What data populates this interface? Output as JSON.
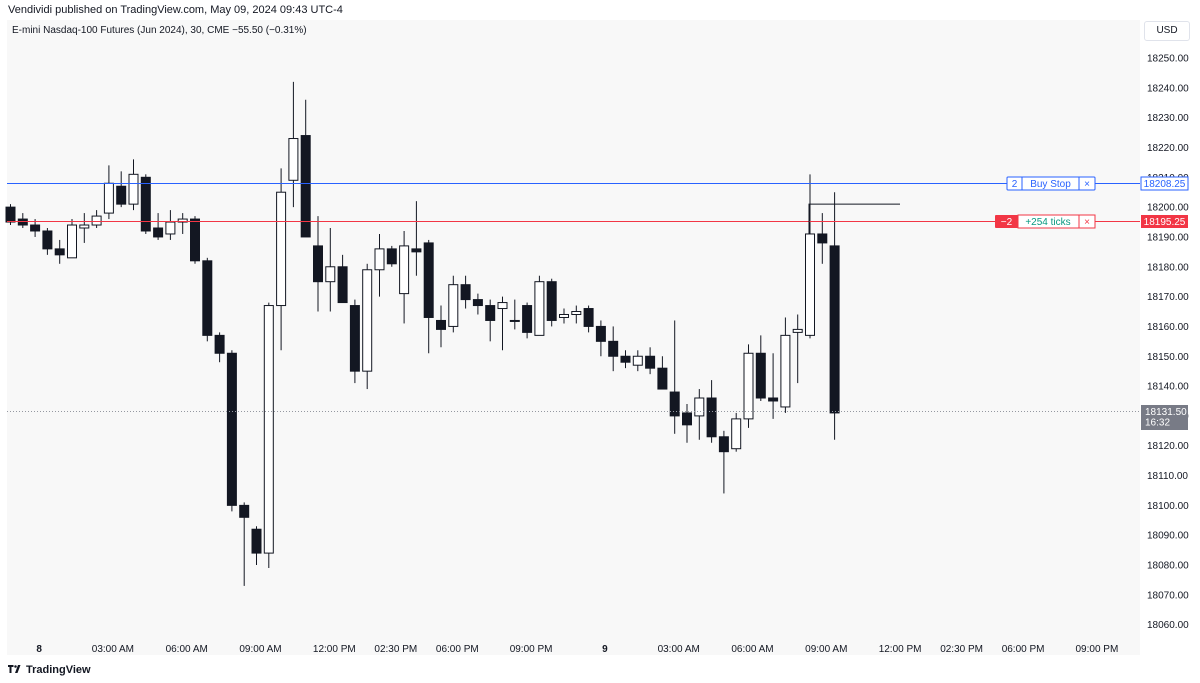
{
  "header": {
    "published": "Vendividi published on TradingView.com, May 09, 2024 09:43 UTC-4"
  },
  "symbol": {
    "line": "E-mini Nasdaq-100 Futures (Jun 2024), 30, CME  −55.50 (−0.31%)"
  },
  "price_axis": {
    "currency": "USD"
  },
  "footer": {
    "brand": "TradingView"
  },
  "orders": {
    "buy_stop": {
      "qty": "2",
      "label": "Buy Stop",
      "close": "×",
      "price_label": "18208.25",
      "price": 18208.25,
      "color": "#2962ff"
    },
    "position": {
      "qty": "−2",
      "label": "+254 ticks",
      "close": "×",
      "price_label": "18195.25",
      "price": 18195.25,
      "color": "#f23645",
      "pnl_color": "#089981"
    }
  },
  "last_price": {
    "price_label": "18131.50",
    "countdown": "16:32",
    "price": 18131.5
  },
  "chart_data": {
    "type": "candlestick",
    "title": "E-mini Nasdaq-100 Futures (Jun 2024), 30, CME",
    "ylim": [
      18055,
      18255
    ],
    "y_ticks": [
      18250,
      18240,
      18230,
      18220,
      18210,
      18200,
      18190,
      18180,
      18170,
      18160,
      18150,
      18140,
      18130,
      18120,
      18110,
      18100,
      18090,
      18080,
      18070,
      18060
    ],
    "y_tick_labels": [
      "18250.00",
      "18240.00",
      "18230.00",
      "18220.00",
      "18210.00",
      "18200.00",
      "18190.00",
      "18180.00",
      "18170.00",
      "18160.00",
      "18150.00",
      "18140.00",
      "18130.00",
      "18120.00",
      "18110.00",
      "18100.00",
      "18090.00",
      "18080.00",
      "18070.00",
      "18060.00"
    ],
    "x_tick_labels": [
      {
        "bar": 2,
        "label": "8",
        "bold": true
      },
      {
        "bar": 8,
        "label": "03:00 AM"
      },
      {
        "bar": 14,
        "label": "06:00 AM"
      },
      {
        "bar": 20,
        "label": "09:00 AM"
      },
      {
        "bar": 26,
        "label": "12:00 PM"
      },
      {
        "bar": 31,
        "label": "02:30 PM"
      },
      {
        "bar": 36,
        "label": "06:00 PM"
      },
      {
        "bar": 42,
        "label": "09:00 PM"
      },
      {
        "bar": 48,
        "label": "9",
        "bold": true
      },
      {
        "bar": 54,
        "label": "03:00 AM"
      },
      {
        "bar": 60,
        "label": "06:00 AM"
      },
      {
        "bar": 66,
        "label": "09:00 AM"
      },
      {
        "bar": 72,
        "label": "12:00 PM"
      },
      {
        "bar": 77,
        "label": "02:30 PM"
      },
      {
        "bar": 82,
        "label": "06:00 PM"
      },
      {
        "bar": 88,
        "label": "09:00 PM"
      }
    ],
    "grid": false,
    "up_color": "#ffffff",
    "down_color": "#131722",
    "candles": [
      {
        "o": 18200,
        "h": 18201,
        "l": 18194,
        "c": 18195
      },
      {
        "o": 18196,
        "h": 18198,
        "l": 18193,
        "c": 18194
      },
      {
        "o": 18194,
        "h": 18196,
        "l": 18190,
        "c": 18192
      },
      {
        "o": 18192,
        "h": 18193,
        "l": 18184,
        "c": 18186
      },
      {
        "o": 18186,
        "h": 18189,
        "l": 18181,
        "c": 18184
      },
      {
        "o": 18183,
        "h": 18196,
        "l": 18183,
        "c": 18194
      },
      {
        "o": 18193,
        "h": 18198,
        "l": 18188,
        "c": 18194
      },
      {
        "o": 18194,
        "h": 18199,
        "l": 18193,
        "c": 18197
      },
      {
        "o": 18198,
        "h": 18214,
        "l": 18196,
        "c": 18208
      },
      {
        "o": 18207,
        "h": 18212,
        "l": 18200,
        "c": 18201
      },
      {
        "o": 18201,
        "h": 18216,
        "l": 18199,
        "c": 18211
      },
      {
        "o": 18210,
        "h": 18211,
        "l": 18191,
        "c": 18192
      },
      {
        "o": 18193,
        "h": 18198,
        "l": 18189,
        "c": 18190
      },
      {
        "o": 18191,
        "h": 18199,
        "l": 18189,
        "c": 18195
      },
      {
        "o": 18195,
        "h": 18198,
        "l": 18191,
        "c": 18196
      },
      {
        "o": 18196,
        "h": 18197,
        "l": 18181,
        "c": 18182
      },
      {
        "o": 18182,
        "h": 18183,
        "l": 18155,
        "c": 18157
      },
      {
        "o": 18157,
        "h": 18158,
        "l": 18148,
        "c": 18151
      },
      {
        "o": 18151,
        "h": 18152,
        "l": 18098,
        "c": 18100
      },
      {
        "o": 18100,
        "h": 18101,
        "l": 18073,
        "c": 18096
      },
      {
        "o": 18092,
        "h": 18093,
        "l": 18080,
        "c": 18084
      },
      {
        "o": 18084,
        "h": 18168,
        "l": 18079,
        "c": 18167
      },
      {
        "o": 18167,
        "h": 18213,
        "l": 18152,
        "c": 18205
      },
      {
        "o": 18209,
        "h": 18242,
        "l": 18200,
        "c": 18223
      },
      {
        "o": 18224,
        "h": 18236,
        "l": 18190,
        "c": 18190
      },
      {
        "o": 18187,
        "h": 18197,
        "l": 18165,
        "c": 18175
      },
      {
        "o": 18175,
        "h": 18193,
        "l": 18165,
        "c": 18180
      },
      {
        "o": 18180,
        "h": 18184,
        "l": 18170,
        "c": 18168
      },
      {
        "o": 18167,
        "h": 18169,
        "l": 18141,
        "c": 18145
      },
      {
        "o": 18145,
        "h": 18181,
        "l": 18139,
        "c": 18179
      },
      {
        "o": 18179,
        "h": 18191,
        "l": 18170,
        "c": 18186
      },
      {
        "o": 18186,
        "h": 18187,
        "l": 18180,
        "c": 18181
      },
      {
        "o": 18171,
        "h": 18192,
        "l": 18161,
        "c": 18187
      },
      {
        "o": 18186,
        "h": 18202,
        "l": 18177,
        "c": 18185
      },
      {
        "o": 18188,
        "h": 18189,
        "l": 18151,
        "c": 18163
      },
      {
        "o": 18162,
        "h": 18167,
        "l": 18153,
        "c": 18159
      },
      {
        "o": 18160,
        "h": 18177,
        "l": 18158,
        "c": 18174
      },
      {
        "o": 18174,
        "h": 18177,
        "l": 18166,
        "c": 18169
      },
      {
        "o": 18169,
        "h": 18171,
        "l": 18164,
        "c": 18167
      },
      {
        "o": 18167,
        "h": 18169,
        "l": 18155,
        "c": 18162
      },
      {
        "o": 18166,
        "h": 18170,
        "l": 18152,
        "c": 18168
      },
      {
        "o": 18162,
        "h": 18169,
        "l": 18159,
        "c": 18162
      },
      {
        "o": 18167,
        "h": 18168,
        "l": 18156,
        "c": 18158
      },
      {
        "o": 18157,
        "h": 18177,
        "l": 18157,
        "c": 18175
      },
      {
        "o": 18175,
        "h": 18176,
        "l": 18160,
        "c": 18162
      },
      {
        "o": 18163,
        "h": 18166,
        "l": 18161,
        "c": 18164
      },
      {
        "o": 18164,
        "h": 18167,
        "l": 18161,
        "c": 18165
      },
      {
        "o": 18166,
        "h": 18167,
        "l": 18158,
        "c": 18160
      },
      {
        "o": 18160,
        "h": 18162,
        "l": 18150,
        "c": 18155
      },
      {
        "o": 18155,
        "h": 18160,
        "l": 18145,
        "c": 18150
      },
      {
        "o": 18150,
        "h": 18152,
        "l": 18146,
        "c": 18148
      },
      {
        "o": 18147,
        "h": 18152,
        "l": 18145,
        "c": 18150
      },
      {
        "o": 18150,
        "h": 18153,
        "l": 18144,
        "c": 18146
      },
      {
        "o": 18146,
        "h": 18150,
        "l": 18139,
        "c": 18139
      },
      {
        "o": 18138,
        "h": 18162,
        "l": 18124,
        "c": 18130
      },
      {
        "o": 18131,
        "h": 18134,
        "l": 18121,
        "c": 18127
      },
      {
        "o": 18130,
        "h": 18139,
        "l": 18122,
        "c": 18136
      },
      {
        "o": 18136,
        "h": 18142,
        "l": 18121,
        "c": 18123
      },
      {
        "o": 18123,
        "h": 18125,
        "l": 18104,
        "c": 18118
      },
      {
        "o": 18119,
        "h": 18131,
        "l": 18118,
        "c": 18129
      },
      {
        "o": 18129,
        "h": 18154,
        "l": 18126,
        "c": 18151
      },
      {
        "o": 18151,
        "h": 18157,
        "l": 18135,
        "c": 18136
      },
      {
        "o": 18136,
        "h": 18151,
        "l": 18129,
        "c": 18135
      },
      {
        "o": 18133,
        "h": 18163,
        "l": 18131,
        "c": 18157
      },
      {
        "o": 18158,
        "h": 18164,
        "l": 18141,
        "c": 18159
      },
      {
        "o": 18157,
        "h": 18211,
        "l": 18156,
        "c": 18191
      },
      {
        "o": 18191,
        "h": 18198,
        "l": 18181,
        "c": 18188
      },
      {
        "o": 18187,
        "h": 18205,
        "l": 18122,
        "c": 18131
      }
    ]
  }
}
